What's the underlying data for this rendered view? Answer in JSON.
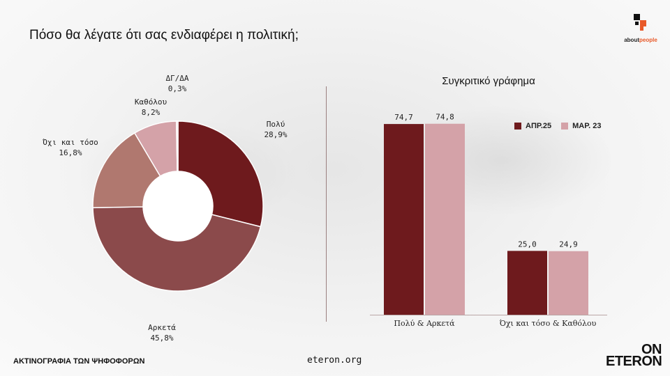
{
  "header": {
    "title": "Πόσο θα λέγατε ότι σας ενδιαφέρει η πολιτική;"
  },
  "logo": {
    "text_part1": "about",
    "text_part2": "people"
  },
  "chart_data": [
    {
      "type": "pie",
      "variant": "donut",
      "slices": [
        {
          "label": "Πολύ",
          "value": 28.9,
          "value_text": "28,9%",
          "color": "#6e1a1d"
        },
        {
          "label": "Αρκετά",
          "value": 45.8,
          "value_text": "45,8%",
          "color": "#8b4a4b"
        },
        {
          "label": "Όχι και τόσο",
          "value": 16.8,
          "value_text": "16,8%",
          "color": "#b0786f"
        },
        {
          "label": "Καθόλου",
          "value": 8.2,
          "value_text": "8,2%",
          "color": "#d4a2a8"
        },
        {
          "label": "ΔΓ/ΔΑ",
          "value": 0.3,
          "value_text": "0,3%",
          "color": "#e9d2d4"
        }
      ]
    },
    {
      "type": "bar",
      "title": "Συγκριτικό γράφημα",
      "categories": [
        "Πολύ & Αρκετά",
        "Όχι και τόσο & Καθόλου"
      ],
      "series": [
        {
          "name": "ΑΠΡ.25",
          "values": [
            74.7,
            25.0
          ],
          "value_texts": [
            "74,7",
            "25,0"
          ],
          "color": "#6e1a1d"
        },
        {
          "name": "ΜΑΡ. 23",
          "values": [
            74.8,
            24.9
          ],
          "value_texts": [
            "74,8",
            "24,9"
          ],
          "color": "#d4a2a8"
        }
      ],
      "ylim": [
        0,
        90
      ],
      "legend_position": "top-right"
    }
  ],
  "footer": {
    "left": "ΑΚΤΙΝΟΓΡΑΦΙΑ ΤΩΝ ΨΗΦΟΦΟΡΩΝ",
    "center": "eteron.org",
    "brand_line1": "ON",
    "brand_line2": "ETERON"
  }
}
